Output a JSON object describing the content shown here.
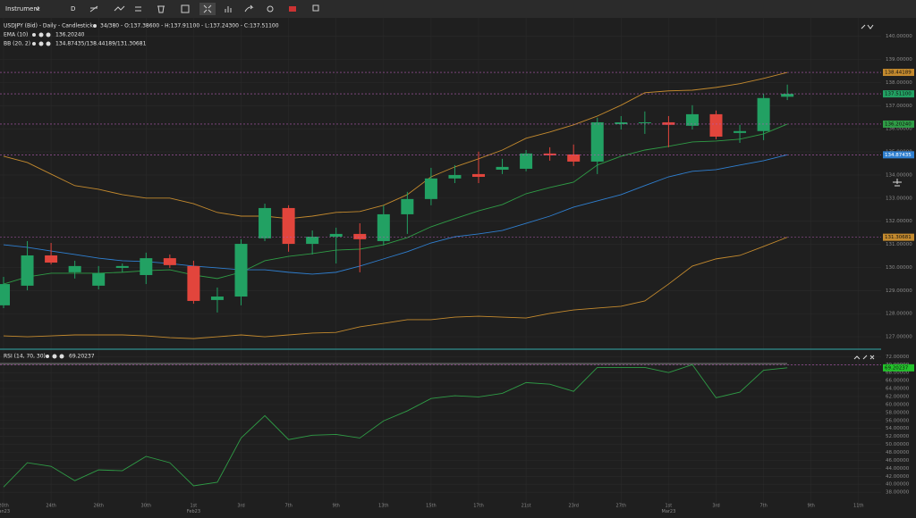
{
  "toolbar": {
    "instrument": "Instrument",
    "timeframe": "D"
  },
  "chart_data": [
    {
      "type": "candlestick",
      "title": "USDJPY (Bid) - Daily - Candlestick",
      "subtitle": "34/380 - O:137.38600 - H:137.91100 - L:137.24300 - C:137.51100",
      "categories": [
        "20th",
        null,
        "24th",
        null,
        "26th",
        null,
        "30th",
        null,
        "1st",
        null,
        "3rd",
        null,
        "7th",
        null,
        "9th",
        null,
        "13th",
        null,
        "15th",
        null,
        "17th",
        null,
        "21st",
        null,
        "23rd",
        null,
        "27th",
        null,
        "1st",
        null,
        "3rd",
        null,
        "7th",
        null
      ],
      "month_labels": [
        "Jan23",
        null,
        null,
        null,
        null,
        null,
        null,
        null,
        "Feb23",
        null,
        null,
        null,
        null,
        null,
        null,
        null,
        null,
        null,
        null,
        null,
        null,
        null,
        null,
        null,
        null,
        null,
        null,
        null,
        "Mar23",
        null,
        null,
        null,
        null,
        null
      ],
      "future_categories": [
        "9th",
        "11th"
      ],
      "open": [
        128.36,
        129.21,
        130.52,
        129.79,
        129.21,
        129.98,
        129.67,
        130.4,
        130.06,
        128.59,
        128.74,
        131.26,
        132.57,
        131.02,
        131.33,
        131.45,
        131.14,
        132.3,
        132.96,
        133.85,
        134.04,
        134.23,
        134.27,
        134.93,
        134.89,
        134.58,
        136.2,
        136.24,
        136.28,
        136.13,
        136.63,
        135.82,
        135.9,
        137.386
      ],
      "high": [
        129.59,
        131.14,
        131.06,
        130.29,
        130.06,
        130.17,
        130.64,
        130.56,
        130.29,
        129.13,
        131.22,
        132.76,
        132.69,
        131.6,
        131.72,
        131.91,
        132.69,
        133.27,
        134.31,
        134.43,
        135.01,
        134.7,
        135.08,
        135.2,
        135.32,
        136.48,
        136.55,
        136.75,
        136.55,
        137.02,
        136.79,
        136.17,
        137.52,
        137.911
      ],
      "low": [
        128.24,
        129.01,
        130.13,
        129.52,
        129.05,
        129.79,
        129.28,
        129.98,
        128.43,
        128.05,
        128.36,
        131.14,
        130.68,
        130.56,
        130.17,
        129.79,
        130.95,
        131.45,
        132.69,
        133.65,
        133.65,
        134.04,
        134.16,
        134.62,
        134.39,
        134.04,
        135.97,
        135.78,
        135.2,
        135.97,
        135.55,
        135.39,
        135.51,
        137.243
      ],
      "close": [
        129.28,
        130.52,
        130.21,
        130.06,
        129.75,
        130.06,
        130.4,
        130.1,
        128.55,
        128.74,
        131.02,
        132.57,
        131.02,
        131.33,
        131.45,
        131.22,
        132.3,
        132.96,
        133.85,
        134.0,
        133.92,
        134.35,
        134.93,
        134.85,
        134.58,
        136.28,
        136.28,
        136.28,
        136.17,
        136.63,
        135.66,
        135.9,
        137.33,
        137.511
      ],
      "close_tag": "137.51100",
      "up_color": "#22a163",
      "down_color": "#e2453c",
      "series": [
        {
          "name": "EMA (10)",
          "value_label": "136.20240",
          "color": "#2f9c46",
          "values": [
            129.28,
            129.59,
            129.75,
            129.75,
            129.75,
            129.79,
            129.86,
            129.9,
            129.67,
            129.52,
            129.79,
            130.29,
            130.48,
            130.6,
            130.75,
            130.79,
            130.98,
            131.29,
            131.76,
            132.11,
            132.45,
            132.72,
            133.19,
            133.46,
            133.69,
            134.43,
            134.81,
            135.08,
            135.24,
            135.43,
            135.47,
            135.55,
            135.78,
            136.2024
          ]
        },
        {
          "name": "BB (20, 2)",
          "value_label": "134.87435/138.44189/131.30681",
          "color": "#2f7fd0",
          "band_color": "#c48a2e",
          "tags": [
            "134.87435",
            "138.44189",
            "131.30681"
          ],
          "values": [
            130.98,
            130.87,
            130.71,
            130.56,
            130.4,
            130.29,
            130.25,
            130.17,
            130.06,
            129.98,
            129.9,
            129.9,
            129.79,
            129.71,
            129.79,
            130.06,
            130.37,
            130.68,
            131.06,
            131.33,
            131.45,
            131.6,
            131.91,
            132.22,
            132.61,
            132.88,
            133.15,
            133.54,
            133.92,
            134.16,
            134.23,
            134.43,
            134.62,
            134.87435
          ],
          "upper": [
            134.81,
            134.54,
            134.04,
            133.54,
            133.38,
            133.15,
            133.0,
            133.0,
            132.76,
            132.38,
            132.22,
            132.22,
            132.11,
            132.22,
            132.38,
            132.42,
            132.69,
            133.15,
            133.92,
            134.35,
            134.7,
            135.08,
            135.59,
            135.86,
            136.17,
            136.55,
            137.02,
            137.56,
            137.64,
            137.67,
            137.79,
            137.95,
            138.18,
            138.44189
          ],
          "lower": [
            127.04,
            127.0,
            127.04,
            127.08,
            127.08,
            127.08,
            127.04,
            126.96,
            126.92,
            127.0,
            127.08,
            127.0,
            127.08,
            127.16,
            127.19,
            127.43,
            127.58,
            127.74,
            127.74,
            127.85,
            127.89,
            127.85,
            127.81,
            128.01,
            128.16,
            128.24,
            128.32,
            128.55,
            129.28,
            130.06,
            130.37,
            130.52,
            130.91,
            131.30681
          ]
        }
      ],
      "ylim": [
        126.5,
        140.8
      ],
      "yticks": [
        {
          "value": 127,
          "label": "127.00000"
        },
        {
          "value": 128,
          "label": "128.00000"
        },
        {
          "value": 129,
          "label": "129.00000"
        },
        {
          "value": 130,
          "label": "130.00000"
        },
        {
          "value": 131,
          "label": "131.00000"
        },
        {
          "value": 132,
          "label": "132.00000"
        },
        {
          "value": 133,
          "label": "133.00000"
        },
        {
          "value": 134,
          "label": "134.00000"
        },
        {
          "value": 135,
          "label": "135.00000"
        },
        {
          "value": 136,
          "label": "136.00000"
        },
        {
          "value": 137,
          "label": "137.00000"
        },
        {
          "value": 138,
          "label": "138.00000"
        },
        {
          "value": 139,
          "label": "139.00000"
        },
        {
          "value": 140,
          "label": "140.00000"
        }
      ]
    },
    {
      "type": "line",
      "title": "RSI (14, 70, 30)",
      "value_label": "69.20237",
      "color": "#2f9c46",
      "overbought": 70,
      "values": [
        39.3,
        45.4,
        44.5,
        40.9,
        43.6,
        43.4,
        47.0,
        45.4,
        39.6,
        40.5,
        51.6,
        57.2,
        51.2,
        52.3,
        52.5,
        51.6,
        55.9,
        58.4,
        61.5,
        62.2,
        61.9,
        62.8,
        65.5,
        65.1,
        63.3,
        69.3,
        69.3,
        69.3,
        68.0,
        70.0,
        61.7,
        63.1,
        68.6,
        69.20237
      ],
      "ylim": [
        34,
        73.2
      ],
      "yticks": [
        {
          "value": 38,
          "label": "38.00000"
        },
        {
          "value": 40,
          "label": "40.00000"
        },
        {
          "value": 42,
          "label": "42.00000"
        },
        {
          "value": 44,
          "label": "44.00000"
        },
        {
          "value": 46,
          "label": "46.00000"
        },
        {
          "value": 48,
          "label": "48.00000"
        },
        {
          "value": 50,
          "label": "50.00000"
        },
        {
          "value": 52,
          "label": "52.00000"
        },
        {
          "value": 54,
          "label": "54.00000"
        },
        {
          "value": 56,
          "label": "56.00000"
        },
        {
          "value": 58,
          "label": "58.00000"
        },
        {
          "value": 60,
          "label": "60.00000"
        },
        {
          "value": 62,
          "label": "62.00000"
        },
        {
          "value": 64,
          "label": "64.00000"
        },
        {
          "value": 66,
          "label": "66.00000"
        },
        {
          "value": 68,
          "label": "68.00000"
        },
        {
          "value": 70,
          "label": "70.00000"
        },
        {
          "value": 72,
          "label": "72.00000"
        }
      ]
    }
  ]
}
